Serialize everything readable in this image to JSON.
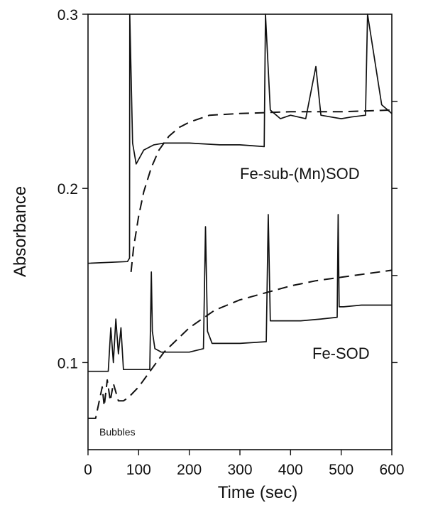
{
  "chart_data": {
    "type": "line",
    "xlabel": "Time (sec)",
    "ylabel": "Absorbance",
    "xlim": [
      0,
      600
    ],
    "ylim": [
      0.05,
      0.3
    ],
    "xticks": [
      0,
      100,
      200,
      300,
      400,
      500,
      600
    ],
    "yticks": [
      0.1,
      0.2,
      0.3
    ],
    "ytick_labels": [
      "0.1",
      "0.2",
      "0.3"
    ],
    "grid": false,
    "annotations": [
      {
        "text": "Fe-sub-(Mn)SOD",
        "x": 360,
        "y": 0.2
      },
      {
        "text": "Fe-SOD",
        "x": 400,
        "y": 0.1
      },
      {
        "text": "Bubbles",
        "x": 20,
        "y": 0.059
      }
    ],
    "series": [
      {
        "style": "solid",
        "x": [
          0,
          78,
          82,
          82.5,
          88,
          95,
          110,
          130,
          150,
          200,
          260,
          300,
          348,
          350.5,
          360,
          380,
          400,
          430,
          450,
          460,
          480,
          500,
          520,
          548,
          552,
          580,
          600
        ],
        "y": [
          0.157,
          0.158,
          0.16,
          0.3,
          0.226,
          0.214,
          0.222,
          0.225,
          0.226,
          0.226,
          0.225,
          0.225,
          0.224,
          0.3,
          0.245,
          0.24,
          0.242,
          0.24,
          0.27,
          0.242,
          0.241,
          0.24,
          0.241,
          0.242,
          0.3,
          0.248,
          0.243
        ]
      },
      {
        "style": "dashed",
        "x": [
          85,
          90,
          100,
          110,
          125,
          140,
          160,
          180,
          200,
          240,
          300,
          400,
          500,
          600
        ],
        "y": [
          0.152,
          0.166,
          0.184,
          0.198,
          0.212,
          0.222,
          0.23,
          0.235,
          0.238,
          0.242,
          0.243,
          0.244,
          0.244,
          0.245
        ]
      },
      {
        "style": "solid",
        "x": [
          0,
          40,
          45,
          50,
          55,
          60,
          65,
          70,
          100,
          122,
          125,
          127,
          132,
          145,
          170,
          200,
          228,
          232,
          236,
          245,
          260,
          300,
          352,
          356,
          360,
          380,
          420,
          460,
          492,
          494,
          496,
          505,
          540,
          600
        ],
        "y": [
          0.095,
          0.095,
          0.12,
          0.1,
          0.125,
          0.105,
          0.12,
          0.096,
          0.096,
          0.096,
          0.152,
          0.118,
          0.108,
          0.106,
          0.106,
          0.106,
          0.108,
          0.178,
          0.118,
          0.111,
          0.111,
          0.111,
          0.112,
          0.185,
          0.124,
          0.124,
          0.124,
          0.125,
          0.126,
          0.185,
          0.132,
          0.132,
          0.133,
          0.133
        ]
      },
      {
        "style": "dashed",
        "x": [
          0,
          15,
          28,
          32,
          38,
          44,
          50,
          60,
          70,
          80,
          100,
          125,
          150,
          200,
          250,
          300,
          350,
          400,
          450,
          500,
          550,
          600
        ],
        "y": [
          0.068,
          0.068,
          0.086,
          0.075,
          0.09,
          0.078,
          0.088,
          0.078,
          0.078,
          0.08,
          0.086,
          0.096,
          0.106,
          0.12,
          0.13,
          0.136,
          0.14,
          0.144,
          0.147,
          0.149,
          0.151,
          0.153
        ]
      }
    ]
  }
}
